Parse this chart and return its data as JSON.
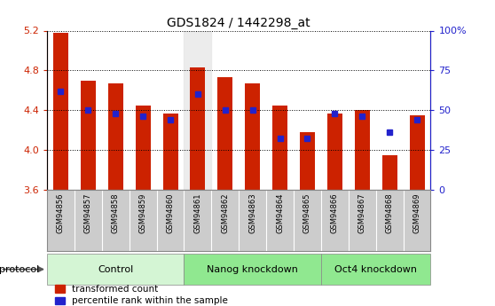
{
  "title": "GDS1824 / 1442298_at",
  "samples": [
    "GSM94856",
    "GSM94857",
    "GSM94858",
    "GSM94859",
    "GSM94860",
    "GSM94861",
    "GSM94862",
    "GSM94863",
    "GSM94864",
    "GSM94865",
    "GSM94866",
    "GSM94867",
    "GSM94868",
    "GSM94869"
  ],
  "transformed_counts": [
    5.18,
    4.7,
    4.67,
    4.45,
    4.37,
    4.83,
    4.73,
    4.67,
    4.45,
    4.18,
    4.37,
    4.4,
    3.95,
    4.35
  ],
  "percentile_ranks": [
    62,
    50,
    48,
    46,
    44,
    60,
    50,
    50,
    32,
    32,
    48,
    46,
    36,
    44
  ],
  "groups": [
    {
      "label": "Control",
      "start": 0,
      "end": 5
    },
    {
      "label": "Nanog knockdown",
      "start": 5,
      "end": 10
    },
    {
      "label": "Oct4 knockdown",
      "start": 10,
      "end": 14
    }
  ],
  "group_colors": [
    "#d4f5d4",
    "#90e890",
    "#90e890"
  ],
  "ylim_left": [
    3.6,
    5.2
  ],
  "ylim_right": [
    0,
    100
  ],
  "yticks_left": [
    3.6,
    4.0,
    4.4,
    4.8,
    5.2
  ],
  "yticks_right": [
    0,
    25,
    50,
    75,
    100
  ],
  "bar_color": "#cc2200",
  "percentile_color": "#2222cc",
  "bar_bottom": 3.6,
  "bar_width": 0.55,
  "highlighted_sample": "GSM94861",
  "bg_plot": "#ffffff",
  "bg_xtick": "#cccccc",
  "left_axis_color": "#cc2200",
  "right_axis_color": "#2222cc"
}
